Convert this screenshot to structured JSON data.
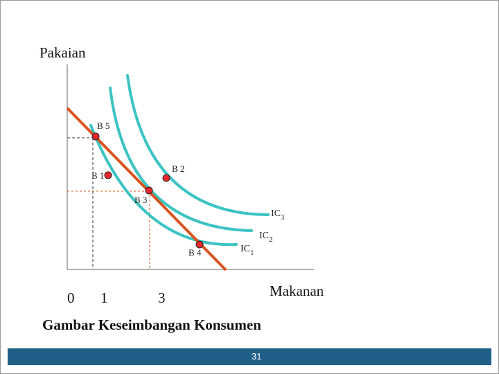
{
  "axes": {
    "y_label": "Pakaian",
    "x_label": "Makanan",
    "origin_label": "0",
    "x_ticks": [
      "1",
      "3"
    ]
  },
  "curves": [
    {
      "label_main": "IC",
      "label_sub": "1",
      "color": "#3cc3c3"
    },
    {
      "label_main": "IC",
      "label_sub": "2",
      "color": "#3cc3c3"
    },
    {
      "label_main": "IC",
      "label_sub": "3",
      "color": "#3cc3c3"
    }
  ],
  "budget_line": {
    "color": "#d9541e"
  },
  "points": [
    {
      "label": "B 5"
    },
    {
      "label": "B 1"
    },
    {
      "label": "B 2"
    },
    {
      "label": "B 3"
    },
    {
      "label": "B 4"
    }
  ],
  "caption": "Gambar Keseimbangan Konsumen",
  "footer": {
    "page_number": "31"
  }
}
